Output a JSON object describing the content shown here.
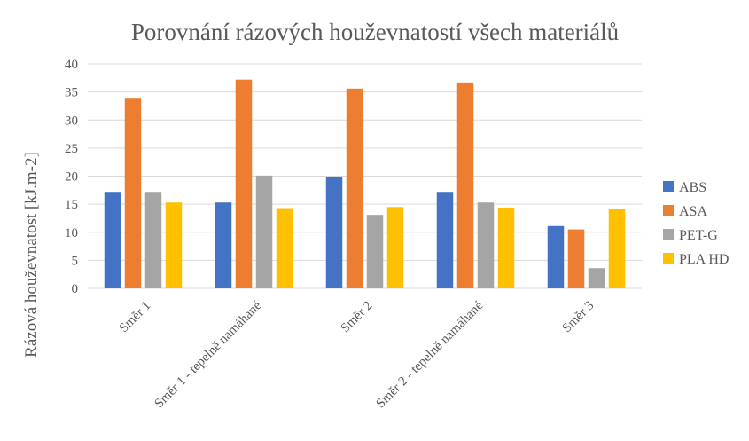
{
  "chart_data": {
    "type": "bar",
    "title": "Porovnání rázových houževnatostí všech materiálů",
    "xlabel": "",
    "ylabel": "Rázová houževnatost [kJ.m-2]",
    "ylim": [
      0,
      40
    ],
    "yticks": [
      0,
      5,
      10,
      15,
      20,
      25,
      30,
      35,
      40
    ],
    "grid": true,
    "legend": "right",
    "categories": [
      "Směr 1",
      "Směr 1 - tepelně namáhané",
      "Směr 2",
      "Směr 2 - tepelně namáhané",
      "Směr 3"
    ],
    "series": [
      {
        "name": "ABS",
        "color": "#4472C4",
        "values": [
          17.2,
          15.3,
          19.9,
          17.2,
          11.1
        ]
      },
      {
        "name": "ASA",
        "color": "#ED7D31",
        "values": [
          33.8,
          37.2,
          35.6,
          36.7,
          10.5
        ]
      },
      {
        "name": "PET-G",
        "color": "#A5A5A5",
        "values": [
          17.2,
          20.1,
          13.1,
          15.3,
          3.6
        ]
      },
      {
        "name": "PLA HD",
        "color": "#FFC000",
        "values": [
          15.3,
          14.3,
          14.5,
          14.4,
          14.1
        ]
      }
    ]
  }
}
